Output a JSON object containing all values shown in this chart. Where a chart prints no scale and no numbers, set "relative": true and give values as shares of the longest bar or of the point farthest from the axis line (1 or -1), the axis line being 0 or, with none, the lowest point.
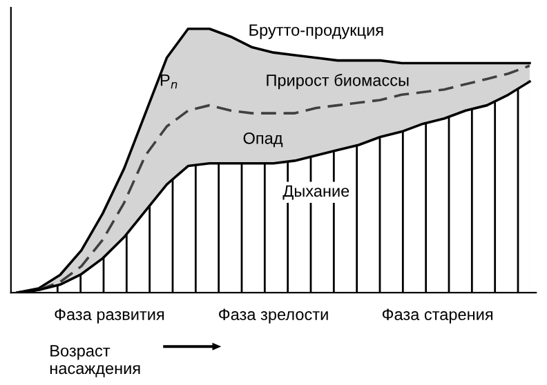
{
  "chart_data": {
    "type": "line",
    "relative": true,
    "grid": false,
    "legend": false,
    "categories": [
      null,
      null,
      null,
      null,
      null,
      null,
      null,
      null,
      null,
      null,
      null,
      null,
      null,
      null,
      null,
      null,
      null,
      null,
      null,
      null,
      null,
      null,
      null,
      null,
      null
    ],
    "series": [
      {
        "name": "Брутто-продукция",
        "type": "area",
        "color": "#d4d4d4",
        "values": [
          0,
          0.016,
          0.067,
          0.16,
          0.3,
          0.47,
          0.68,
          0.89,
          1,
          1,
          0.97,
          0.93,
          0.91,
          0.9,
          0.89,
          0.88,
          0.88,
          0.88,
          0.87,
          0.87,
          0.87,
          0.87,
          0.87,
          0.87,
          0.87
        ]
      },
      {
        "name": "Прирост биомассы",
        "line_style": "dashed",
        "color": "#404040",
        "values": [
          0,
          0.01,
          0.04,
          0.1,
          0.2,
          0.34,
          0.52,
          0.63,
          0.69,
          0.71,
          0.69,
          0.68,
          0.68,
          0.68,
          0.7,
          0.71,
          0.72,
          0.73,
          0.75,
          0.76,
          0.77,
          0.79,
          0.81,
          0.83,
          0.86
        ]
      },
      {
        "name": "Дыхание",
        "type": "area",
        "color": "#ffffff",
        "values": [
          0,
          0.01,
          0.03,
          0.07,
          0.13,
          0.21,
          0.31,
          0.41,
          0.48,
          0.49,
          0.49,
          0.49,
          0.49,
          0.5,
          0.52,
          0.54,
          0.56,
          0.59,
          0.61,
          0.64,
          0.66,
          0.69,
          0.71,
          0.75,
          0.8
        ]
      }
    ],
    "annotations": [
      "P$_{n}$",
      "Опад",
      "Фаза развития",
      "Фаза зрелости",
      "Фаза старения",
      "Возраст\nнасаждения"
    ]
  }
}
